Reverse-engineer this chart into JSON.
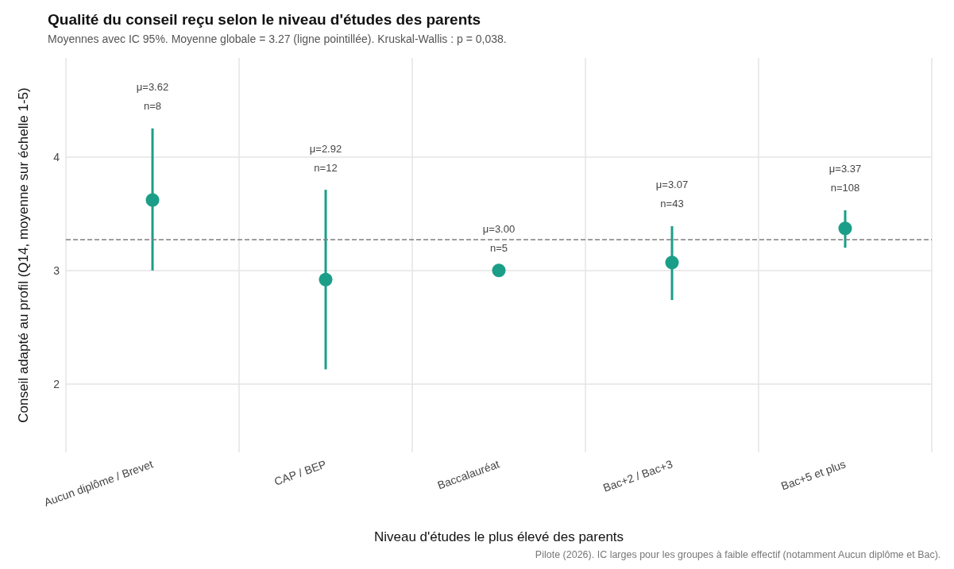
{
  "chart_data": {
    "type": "scatter",
    "title": "Qualité du conseil reçu selon le niveau d'études des parents",
    "subtitle": "Moyennes avec IC 95%. Moyenne globale = 3.27 (ligne pointillée). Kruskal-Wallis : p = 0,038.",
    "xlabel": "Niveau d'études le plus élevé des parents",
    "ylabel": "Conseil adapté au profil (Q14, moyenne sur échelle 1-5)",
    "annotations": [
      "Pilote (2026). IC larges pour les groupes à faible effectif (notamment Aucun diplôme et Bac).",
      {
        "text": "μ=3.62\nn=8",
        "x": "Aucun diplôme / Brevet",
        "y": 4.25
      },
      {
        "text": "μ=2.92\nn=12",
        "x": "CAP / BEP",
        "y": 3.71
      },
      {
        "text": "μ=3.00\nn=5",
        "x": "Baccalauréat",
        "y": 3.0
      },
      {
        "text": "μ=3.07\nn=43",
        "x": "Bac+2 / Bac+3",
        "y": 3.39
      },
      {
        "text": "μ=3.37\nn=108",
        "x": "Bac+5 et plus",
        "y": 3.53
      }
    ],
    "categories": [
      "Aucun diplôme / Brevet",
      "CAP / BEP",
      "Baccalauréat",
      "Bac+2 / Bac+3",
      "Bac+5 et plus"
    ],
    "values": [
      3.62,
      2.92,
      3.0,
      3.07,
      3.37
    ],
    "errors": [
      [
        3.0,
        4.25
      ],
      [
        2.13,
        3.71
      ],
      null,
      [
        2.74,
        3.39
      ],
      [
        3.2,
        3.53
      ]
    ],
    "color": "#1b9e87",
    "marker": "circle",
    "ylim": [
      1.4,
      4.87
    ],
    "yticks": [
      2,
      3,
      4
    ],
    "grid": true,
    "ref_lines": [
      {
        "axis": "y",
        "value": 3.27,
        "color": "#7f7f7f",
        "line_style": "dashed"
      }
    ]
  }
}
